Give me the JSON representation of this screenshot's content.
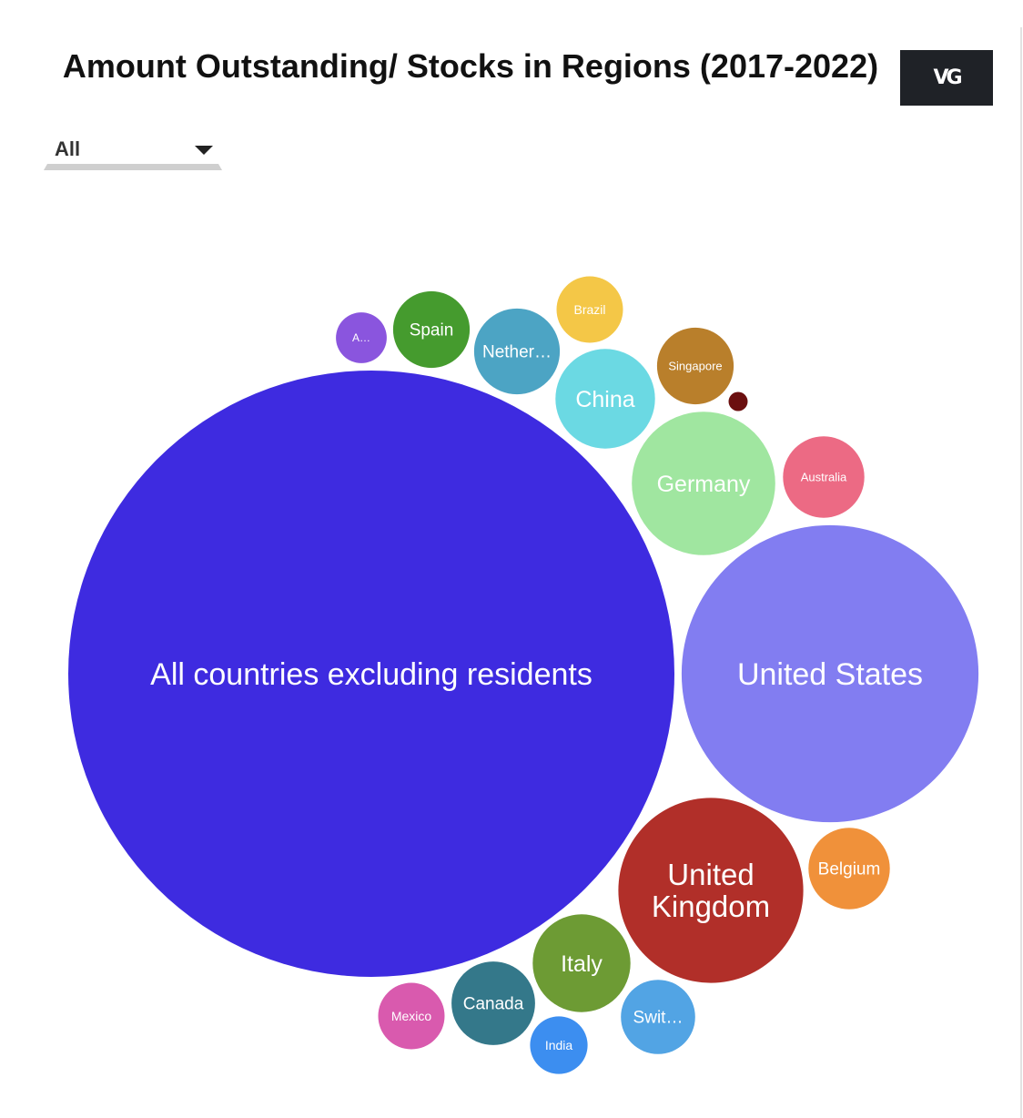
{
  "title": "Amount Outstanding/ Stocks in Regions (2017-2022)",
  "logo": {
    "text": "VG"
  },
  "filter": {
    "selected": "All"
  },
  "chart_data": {
    "type": "bubble",
    "title": "Amount Outstanding/ Stocks in Regions (2017-2022)",
    "value_encoding": "circle area (relative)",
    "bubbles": [
      {
        "name": "All countries excluding residents",
        "label": "All countries excluding residents",
        "value": 100,
        "color": "#3e2be0"
      },
      {
        "name": "United States",
        "label": "United States",
        "value": 24,
        "color": "#827df1"
      },
      {
        "name": "United Kingdom",
        "label": "United\nKingdom",
        "value": 9.3,
        "color": "#b12f29"
      },
      {
        "name": "Germany",
        "label": "Germany",
        "value": 5.6,
        "color": "#a0e6a0"
      },
      {
        "name": "China",
        "label": "China",
        "value": 2.7,
        "color": "#6bd9e3"
      },
      {
        "name": "Italy",
        "label": "Italy",
        "value": 2.6,
        "color": "#6d9b34"
      },
      {
        "name": "Netherlands",
        "label": "Nether…",
        "value": 2.0,
        "color": "#4ca4c4"
      },
      {
        "name": "Canada",
        "label": "Canada",
        "value": 1.9,
        "color": "#34788a"
      },
      {
        "name": "Belgium",
        "label": "Belgium",
        "value": 1.8,
        "color": "#f0913a"
      },
      {
        "name": "Australia",
        "label": "Australia",
        "value": 1.8,
        "color": "#ec6a84"
      },
      {
        "name": "Spain",
        "label": "Spain",
        "value": 1.6,
        "color": "#459b2e"
      },
      {
        "name": "Switzerland",
        "label": "Swit…",
        "value": 1.5,
        "color": "#52a4e4"
      },
      {
        "name": "Singapore",
        "label": "Singapore",
        "value": 1.6,
        "color": "#b97f2b"
      },
      {
        "name": "Mexico",
        "label": "Mexico",
        "value": 1.2,
        "color": "#d95aae"
      },
      {
        "name": "Brazil",
        "label": "Brazil",
        "value": 1.2,
        "color": "#f4c747"
      },
      {
        "name": "India",
        "label": "India",
        "value": 0.9,
        "color": "#3c8ef0"
      },
      {
        "name": "A…",
        "label": "A…",
        "value": 0.7,
        "color": "#8a55de"
      },
      {
        "name": "",
        "label": "",
        "value": 0.1,
        "color": "#6b0f0f"
      }
    ]
  }
}
